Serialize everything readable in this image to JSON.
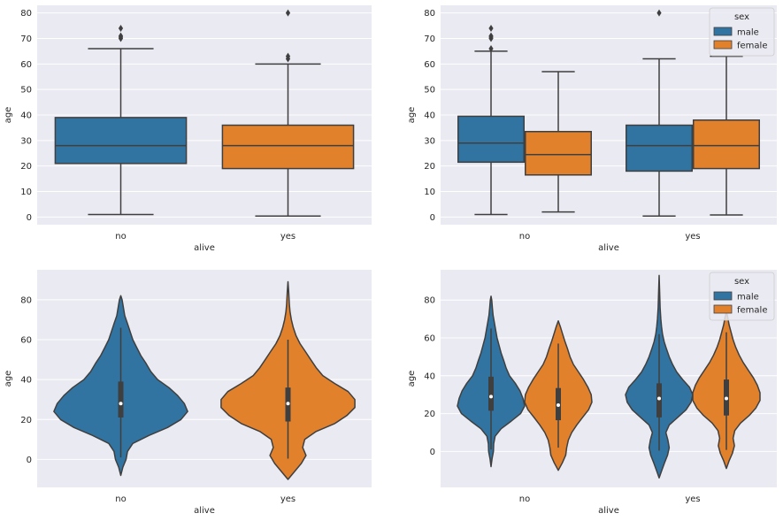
{
  "colors": {
    "background": "#eaeaf2",
    "grid": "#ffffff",
    "male": "#3274a1",
    "female": "#e1812c",
    "edge": "#3f3f3f",
    "text": "#262626"
  },
  "chart_data": [
    {
      "type": "box",
      "title": "",
      "xlabel": "alive",
      "ylabel": "age",
      "categories": [
        "no",
        "yes"
      ],
      "ylim": [
        -3,
        83
      ],
      "yticks": [
        0,
        10,
        20,
        30,
        40,
        50,
        60,
        70,
        80
      ],
      "series": [
        {
          "name": "all",
          "boxes": [
            {
              "category": "no",
              "color": "female-none",
              "min": 1,
              "q1": 21,
              "median": 28,
              "q3": 39,
              "max": 66,
              "outliers": [
                70,
                70.5,
                71,
                74
              ]
            },
            {
              "category": "yes",
              "min": 0.4,
              "q1": 19,
              "median": 28,
              "q3": 36,
              "max": 60,
              "outliers": [
                62,
                63,
                80
              ]
            }
          ]
        }
      ]
    },
    {
      "type": "box",
      "title": "",
      "xlabel": "alive",
      "ylabel": "age",
      "categories": [
        "no",
        "yes"
      ],
      "ylim": [
        -3,
        83
      ],
      "yticks": [
        0,
        10,
        20,
        30,
        40,
        50,
        60,
        70,
        80
      ],
      "legend": {
        "title": "sex",
        "entries": [
          "male",
          "female"
        ],
        "placement": "top-right"
      },
      "series": [
        {
          "name": "male",
          "boxes": [
            {
              "category": "no",
              "min": 1,
              "q1": 21.5,
              "median": 29,
              "q3": 39.5,
              "max": 65,
              "outliers": [
                66,
                70,
                70.5,
                71,
                74
              ]
            },
            {
              "category": "yes",
              "min": 0.4,
              "q1": 18,
              "median": 28,
              "q3": 36,
              "max": 62,
              "outliers": [
                80
              ]
            }
          ]
        },
        {
          "name": "female",
          "boxes": [
            {
              "category": "no",
              "min": 2,
              "q1": 16.5,
              "median": 24.5,
              "q3": 33.5,
              "max": 57,
              "outliers": []
            },
            {
              "category": "yes",
              "min": 0.8,
              "q1": 19,
              "median": 28,
              "q3": 38,
              "max": 63,
              "outliers": []
            }
          ]
        }
      ]
    },
    {
      "type": "violin",
      "title": "",
      "xlabel": "alive",
      "ylabel": "age",
      "categories": [
        "no",
        "yes"
      ],
      "ylim": [
        -14,
        95
      ],
      "yticks": [
        0,
        20,
        40,
        60,
        80
      ],
      "series": [
        {
          "name": "all",
          "violins": [
            {
              "category": "no",
              "extent": [
                -8,
                82
              ],
              "q1": 21,
              "median": 28,
              "q3": 39,
              "whisker": [
                1,
                66
              ],
              "profile": [
                [
                  -8,
                  0
                ],
                [
                  -4,
                  0.03
                ],
                [
                  0,
                  0.08
                ],
                [
                  4,
                  0.1
                ],
                [
                  8,
                  0.18
                ],
                [
                  12,
                  0.42
                ],
                [
                  16,
                  0.7
                ],
                [
                  20,
                  0.9
                ],
                [
                  24,
                  1.0
                ],
                [
                  28,
                  0.95
                ],
                [
                  32,
                  0.85
                ],
                [
                  36,
                  0.72
                ],
                [
                  40,
                  0.55
                ],
                [
                  44,
                  0.45
                ],
                [
                  48,
                  0.38
                ],
                [
                  52,
                  0.3
                ],
                [
                  56,
                  0.24
                ],
                [
                  60,
                  0.18
                ],
                [
                  64,
                  0.14
                ],
                [
                  68,
                  0.1
                ],
                [
                  72,
                  0.06
                ],
                [
                  76,
                  0.04
                ],
                [
                  80,
                  0.02
                ],
                [
                  82,
                  0
                ]
              ]
            },
            {
              "category": "yes",
              "extent": [
                -10,
                89
              ],
              "q1": 19,
              "median": 28,
              "q3": 36,
              "whisker": [
                0.4,
                60
              ],
              "profile": [
                [
                  -10,
                  0
                ],
                [
                  -6,
                  0.1
                ],
                [
                  -2,
                  0.2
                ],
                [
                  2,
                  0.27
                ],
                [
                  6,
                  0.22
                ],
                [
                  10,
                  0.25
                ],
                [
                  14,
                  0.42
                ],
                [
                  18,
                  0.7
                ],
                [
                  22,
                  0.88
                ],
                [
                  26,
                  1.0
                ],
                [
                  30,
                  1.0
                ],
                [
                  34,
                  0.9
                ],
                [
                  38,
                  0.7
                ],
                [
                  42,
                  0.52
                ],
                [
                  46,
                  0.42
                ],
                [
                  50,
                  0.34
                ],
                [
                  54,
                  0.26
                ],
                [
                  58,
                  0.18
                ],
                [
                  62,
                  0.12
                ],
                [
                  66,
                  0.08
                ],
                [
                  70,
                  0.05
                ],
                [
                  74,
                  0.03
                ],
                [
                  78,
                  0.02
                ],
                [
                  84,
                  0.01
                ],
                [
                  89,
                  0
                ]
              ]
            }
          ]
        }
      ]
    },
    {
      "type": "violin",
      "title": "",
      "xlabel": "alive",
      "ylabel": "age",
      "categories": [
        "no",
        "yes"
      ],
      "ylim": [
        -19,
        96
      ],
      "yticks": [
        0,
        20,
        40,
        60,
        80
      ],
      "legend": {
        "title": "sex",
        "entries": [
          "male",
          "female"
        ],
        "placement": "top-right"
      },
      "series": [
        {
          "name": "male",
          "violins": [
            {
              "category": "no",
              "extent": [
                -8,
                82
              ],
              "q1": 21.5,
              "median": 29,
              "q3": 39.5,
              "whisker": [
                1,
                65
              ],
              "profile": [
                [
                  -8,
                  0
                ],
                [
                  -4,
                  0.03
                ],
                [
                  0,
                  0.07
                ],
                [
                  4,
                  0.08
                ],
                [
                  8,
                  0.12
                ],
                [
                  12,
                  0.3
                ],
                [
                  16,
                  0.6
                ],
                [
                  20,
                  0.88
                ],
                [
                  24,
                  1.0
                ],
                [
                  28,
                  0.95
                ],
                [
                  32,
                  0.86
                ],
                [
                  36,
                  0.72
                ],
                [
                  40,
                  0.55
                ],
                [
                  44,
                  0.45
                ],
                [
                  48,
                  0.38
                ],
                [
                  52,
                  0.3
                ],
                [
                  56,
                  0.24
                ],
                [
                  60,
                  0.18
                ],
                [
                  64,
                  0.14
                ],
                [
                  68,
                  0.1
                ],
                [
                  72,
                  0.06
                ],
                [
                  76,
                  0.04
                ],
                [
                  80,
                  0.02
                ],
                [
                  82,
                  0
                ]
              ]
            },
            {
              "category": "yes",
              "extent": [
                -14,
                93
              ],
              "q1": 18,
              "median": 28,
              "q3": 36,
              "whisker": [
                0.4,
                62
              ],
              "profile": [
                [
                  -14,
                  0
                ],
                [
                  -10,
                  0.08
                ],
                [
                  -6,
                  0.16
                ],
                [
                  -2,
                  0.25
                ],
                [
                  2,
                  0.3
                ],
                [
                  6,
                  0.26
                ],
                [
                  10,
                  0.2
                ],
                [
                  14,
                  0.3
                ],
                [
                  18,
                  0.55
                ],
                [
                  22,
                  0.8
                ],
                [
                  26,
                  0.95
                ],
                [
                  30,
                  1.0
                ],
                [
                  34,
                  0.9
                ],
                [
                  38,
                  0.7
                ],
                [
                  42,
                  0.52
                ],
                [
                  46,
                  0.4
                ],
                [
                  50,
                  0.3
                ],
                [
                  54,
                  0.22
                ],
                [
                  58,
                  0.15
                ],
                [
                  62,
                  0.1
                ],
                [
                  66,
                  0.07
                ],
                [
                  70,
                  0.05
                ],
                [
                  76,
                  0.03
                ],
                [
                  84,
                  0.015
                ],
                [
                  93,
                  0
                ]
              ]
            }
          ]
        },
        {
          "name": "female",
          "violins": [
            {
              "category": "no",
              "extent": [
                -10,
                69
              ],
              "q1": 16.5,
              "median": 24.5,
              "q3": 33.5,
              "whisker": [
                2,
                57
              ],
              "profile": [
                [
                  -10,
                  0
                ],
                [
                  -6,
                  0.12
                ],
                [
                  -2,
                  0.22
                ],
                [
                  2,
                  0.25
                ],
                [
                  6,
                  0.3
                ],
                [
                  10,
                  0.4
                ],
                [
                  14,
                  0.55
                ],
                [
                  18,
                  0.72
                ],
                [
                  22,
                  0.9
                ],
                [
                  26,
                  1.0
                ],
                [
                  30,
                  0.98
                ],
                [
                  34,
                  0.88
                ],
                [
                  38,
                  0.75
                ],
                [
                  42,
                  0.6
                ],
                [
                  46,
                  0.45
                ],
                [
                  50,
                  0.35
                ],
                [
                  54,
                  0.28
                ],
                [
                  58,
                  0.2
                ],
                [
                  62,
                  0.13
                ],
                [
                  66,
                  0.06
                ],
                [
                  69,
                  0
                ]
              ]
            },
            {
              "category": "yes",
              "extent": [
                -9,
                74
              ],
              "q1": 19,
              "median": 28,
              "q3": 38,
              "whisker": [
                0.8,
                63
              ],
              "profile": [
                [
                  -9,
                  0
                ],
                [
                  -5,
                  0.08
                ],
                [
                  -1,
                  0.18
                ],
                [
                  3,
                  0.24
                ],
                [
                  7,
                  0.2
                ],
                [
                  11,
                  0.25
                ],
                [
                  15,
                  0.42
                ],
                [
                  19,
                  0.68
                ],
                [
                  23,
                  0.88
                ],
                [
                  27,
                  1.0
                ],
                [
                  31,
                  1.0
                ],
                [
                  35,
                  0.92
                ],
                [
                  39,
                  0.8
                ],
                [
                  43,
                  0.65
                ],
                [
                  47,
                  0.5
                ],
                [
                  51,
                  0.38
                ],
                [
                  55,
                  0.28
                ],
                [
                  59,
                  0.2
                ],
                [
                  63,
                  0.14
                ],
                [
                  67,
                  0.08
                ],
                [
                  71,
                  0.04
                ],
                [
                  74,
                  0
                ]
              ]
            }
          ]
        }
      ]
    }
  ]
}
